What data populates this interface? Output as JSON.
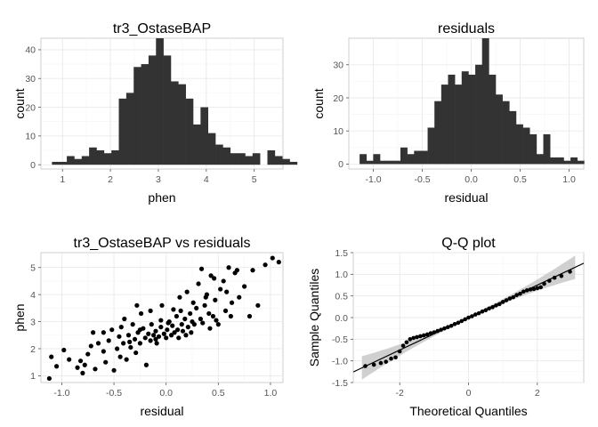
{
  "chart_data": [
    {
      "type": "histogram",
      "title": "tr3_OstaseBAP",
      "xlabel": "phen",
      "ylabel": "count",
      "xlim": [
        0.55,
        5.6
      ],
      "ylim": [
        -1.5,
        44
      ],
      "xticks": [
        1,
        2,
        3,
        4,
        5
      ],
      "yticks": [
        0,
        10,
        20,
        30,
        40
      ],
      "bin_start": 0.78,
      "bin_width": 0.155,
      "bar_color": "#333333",
      "values": [
        1,
        1,
        3,
        2,
        3,
        6,
        5,
        4,
        5,
        23,
        25,
        34,
        35,
        38,
        44,
        38,
        29,
        28,
        23,
        14,
        20,
        11,
        7,
        6,
        4,
        4,
        3,
        4,
        0,
        5,
        3,
        2,
        1
      ]
    },
    {
      "type": "histogram",
      "title": "residuals",
      "xlabel": "residual",
      "ylabel": "count",
      "xlim": [
        -1.25,
        1.15
      ],
      "ylim": [
        -1.5,
        38
      ],
      "xticks": [
        -1.0,
        -0.5,
        0.0,
        0.5,
        1.0
      ],
      "xtick_labels": [
        "-1.0",
        "-0.5",
        "0.0",
        "0.5",
        "1.0"
      ],
      "yticks": [
        0,
        10,
        20,
        30
      ],
      "bin_start": -1.14,
      "bin_width": 0.0695,
      "bar_color": "#333333",
      "values": [
        3,
        1,
        3,
        1,
        1,
        1,
        5,
        3,
        4,
        4,
        11,
        19,
        24,
        27,
        24,
        28,
        27,
        30,
        38,
        27,
        21,
        19,
        16,
        12,
        11,
        9,
        3,
        9,
        2,
        2,
        1,
        2,
        1
      ]
    },
    {
      "type": "scatter",
      "title": "tr3_OstaseBAP vs residuals",
      "xlabel": "residual",
      "ylabel": "phen",
      "xlim": [
        -1.2,
        1.12
      ],
      "ylim": [
        0.75,
        5.55
      ],
      "xticks": [
        -1.0,
        -0.5,
        0.0,
        0.5,
        1.0
      ],
      "xtick_labels": [
        "-1.0",
        "-0.5",
        "0.0",
        "0.5",
        "1.0"
      ],
      "yticks": [
        1,
        2,
        3,
        4,
        5
      ],
      "point_color": "#000000",
      "points": [
        [
          -1.12,
          0.9
        ],
        [
          -1.1,
          1.7
        ],
        [
          -1.05,
          1.35
        ],
        [
          -0.98,
          1.95
        ],
        [
          -0.93,
          1.6
        ],
        [
          -0.85,
          1.3
        ],
        [
          -0.82,
          1.55
        ],
        [
          -0.8,
          1.1
        ],
        [
          -0.78,
          1.4
        ],
        [
          -0.75,
          1.8
        ],
        [
          -0.72,
          2.1
        ],
        [
          -0.7,
          2.6
        ],
        [
          -0.68,
          1.25
        ],
        [
          -0.65,
          2.2
        ],
        [
          -0.6,
          1.9
        ],
        [
          -0.58,
          1.5
        ],
        [
          -0.55,
          2.3
        ],
        [
          -0.52,
          2.7
        ],
        [
          -0.5,
          1.2
        ],
        [
          -0.47,
          2.0
        ],
        [
          -0.45,
          2.45
        ],
        [
          -0.43,
          2.8
        ],
        [
          -0.41,
          2.2
        ],
        [
          -0.4,
          3.1
        ],
        [
          -0.38,
          1.6
        ],
        [
          -0.36,
          2.5
        ],
        [
          -0.34,
          2.05
        ],
        [
          -0.32,
          2.9
        ],
        [
          -0.3,
          2.35
        ],
        [
          -0.29,
          1.85
        ],
        [
          -0.27,
          2.6
        ],
        [
          -0.25,
          2.2
        ],
        [
          -0.24,
          3.3
        ],
        [
          -0.22,
          2.75
        ],
        [
          -0.2,
          2.4
        ],
        [
          -0.19,
          1.4
        ],
        [
          -0.17,
          2.55
        ],
        [
          -0.15,
          2.3
        ],
        [
          -0.14,
          2.9
        ],
        [
          -0.12,
          2.5
        ],
        [
          -0.1,
          2.65
        ],
        [
          -0.09,
          2.2
        ],
        [
          -0.07,
          2.45
        ],
        [
          -0.05,
          2.8
        ],
        [
          -0.04,
          3.6
        ],
        [
          -0.02,
          2.55
        ],
        [
          0.0,
          2.4
        ],
        [
          0.01,
          2.7
        ],
        [
          0.03,
          3.0
        ],
        [
          0.05,
          2.5
        ],
        [
          0.06,
          2.85
        ],
        [
          0.08,
          2.6
        ],
        [
          0.1,
          3.2
        ],
        [
          0.11,
          2.7
        ],
        [
          0.13,
          3.9
        ],
        [
          0.15,
          2.9
        ],
        [
          0.16,
          2.65
        ],
        [
          0.18,
          3.1
        ],
        [
          0.2,
          4.1
        ],
        [
          0.21,
          2.8
        ],
        [
          0.23,
          3.3
        ],
        [
          0.25,
          3.0
        ],
        [
          0.27,
          2.9
        ],
        [
          0.29,
          3.5
        ],
        [
          0.31,
          4.4
        ],
        [
          0.33,
          3.1
        ],
        [
          0.35,
          2.95
        ],
        [
          0.37,
          3.6
        ],
        [
          0.39,
          4.0
        ],
        [
          0.41,
          3.3
        ],
        [
          0.43,
          4.7
        ],
        [
          0.45,
          3.2
        ],
        [
          0.47,
          3.8
        ],
        [
          0.5,
          2.9
        ],
        [
          0.52,
          4.2
        ],
        [
          0.55,
          4.5
        ],
        [
          0.57,
          3.4
        ],
        [
          0.6,
          5.0
        ],
        [
          0.63,
          3.7
        ],
        [
          0.66,
          4.8
        ],
        [
          0.7,
          3.9
        ],
        [
          0.75,
          4.3
        ],
        [
          0.8,
          3.2
        ],
        [
          0.88,
          3.6
        ],
        [
          0.95,
          5.1
        ],
        [
          1.02,
          5.35
        ],
        [
          1.08,
          5.2
        ],
        [
          -0.6,
          2.6
        ],
        [
          -0.15,
          3.4
        ],
        [
          -0.05,
          3.05
        ],
        [
          0.12,
          2.4
        ],
        [
          0.24,
          2.6
        ],
        [
          0.38,
          3.9
        ],
        [
          0.46,
          4.6
        ],
        [
          0.58,
          4.1
        ],
        [
          0.68,
          4.9
        ],
        [
          -0.35,
          2.25
        ],
        [
          -0.25,
          2.7
        ],
        [
          -0.1,
          2.35
        ],
        [
          0.02,
          2.95
        ],
        [
          0.14,
          3.4
        ],
        [
          0.26,
          3.7
        ],
        [
          0.34,
          4.95
        ],
        [
          0.42,
          2.75
        ],
        [
          -0.44,
          1.7
        ],
        [
          -0.28,
          3.6
        ],
        [
          0.07,
          3.45
        ],
        [
          0.19,
          2.5
        ],
        [
          0.48,
          3.05
        ],
        [
          0.62,
          3.2
        ],
        [
          0.83,
          4.9
        ]
      ]
    },
    {
      "type": "qq",
      "title": "Q-Q plot",
      "xlabel": "Theoretical Quantiles",
      "ylabel": "Sample Quantiles",
      "xlim": [
        -3.35,
        3.35
      ],
      "ylim": [
        -1.5,
        1.5
      ],
      "xticks": [
        -2,
        0,
        2
      ],
      "yticks": [
        -1.5,
        -1.0,
        -0.5,
        0.0,
        0.5,
        1.0,
        1.5
      ],
      "ytick_labels": [
        "-1.5",
        "-1.0",
        "-0.5",
        "0.0",
        "0.5",
        "1.0",
        "1.5"
      ],
      "ref_line": {
        "intercept": 0.0,
        "slope": 0.375
      },
      "band_halfwidth_center": 0.03,
      "band_growth": 0.025,
      "band_color": "#c8c8c8",
      "point_color": "#000000",
      "points": [
        [
          -3.0,
          -1.12
        ],
        [
          -2.75,
          -1.09
        ],
        [
          -2.55,
          -1.05
        ],
        [
          -2.4,
          -1.02
        ],
        [
          -2.25,
          -0.95
        ],
        [
          -2.12,
          -0.92
        ],
        [
          -2.0,
          -0.78
        ],
        [
          -1.9,
          -0.65
        ],
        [
          -1.8,
          -0.57
        ],
        [
          -1.7,
          -0.5
        ],
        [
          -1.6,
          -0.47
        ],
        [
          -1.5,
          -0.45
        ],
        [
          -1.4,
          -0.43
        ],
        [
          -1.3,
          -0.41
        ],
        [
          -1.2,
          -0.39
        ],
        [
          -1.1,
          -0.36
        ],
        [
          -1.0,
          -0.34
        ],
        [
          -0.9,
          -0.31
        ],
        [
          -0.8,
          -0.28
        ],
        [
          -0.7,
          -0.25
        ],
        [
          -0.6,
          -0.22
        ],
        [
          -0.5,
          -0.19
        ],
        [
          -0.4,
          -0.15
        ],
        [
          -0.3,
          -0.12
        ],
        [
          -0.2,
          -0.08
        ],
        [
          -0.1,
          -0.04
        ],
        [
          0.0,
          0.0
        ],
        [
          0.1,
          0.03
        ],
        [
          0.2,
          0.07
        ],
        [
          0.3,
          0.1
        ],
        [
          0.4,
          0.14
        ],
        [
          0.5,
          0.17
        ],
        [
          0.6,
          0.21
        ],
        [
          0.7,
          0.24
        ],
        [
          0.8,
          0.28
        ],
        [
          0.9,
          0.31
        ],
        [
          1.0,
          0.36
        ],
        [
          1.1,
          0.4
        ],
        [
          1.2,
          0.44
        ],
        [
          1.3,
          0.47
        ],
        [
          1.4,
          0.52
        ],
        [
          1.5,
          0.55
        ],
        [
          1.6,
          0.6
        ],
        [
          1.7,
          0.63
        ],
        [
          1.8,
          0.65
        ],
        [
          1.9,
          0.66
        ],
        [
          2.0,
          0.68
        ],
        [
          2.1,
          0.7
        ],
        [
          2.2,
          0.78
        ],
        [
          2.35,
          0.85
        ],
        [
          2.5,
          0.92
        ],
        [
          2.7,
          0.96
        ],
        [
          2.95,
          1.06
        ]
      ]
    }
  ]
}
